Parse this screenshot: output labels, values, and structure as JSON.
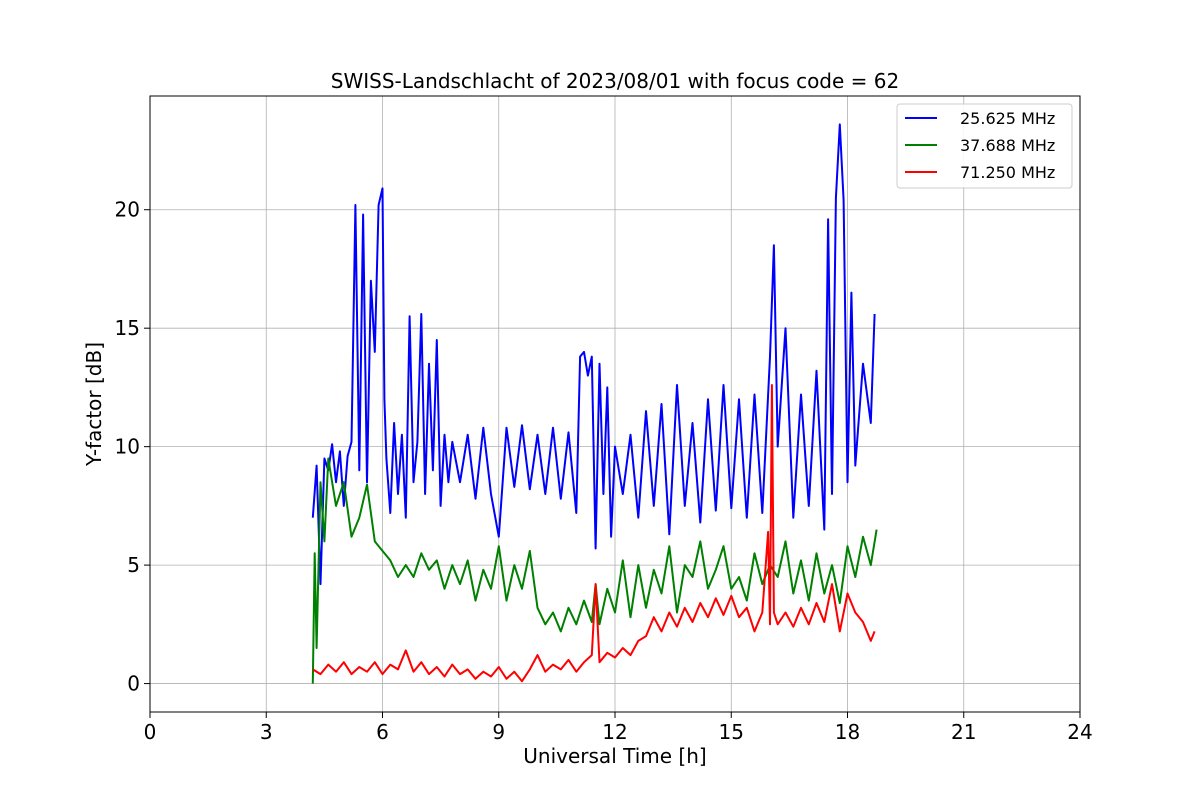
{
  "chart_data": {
    "type": "line",
    "title": "SWISS-Landschlacht of 2023/08/01 with focus code = 62",
    "xlabel": "Universal Time [h]",
    "ylabel": "Y-factor [dB]",
    "xlim": [
      0,
      24
    ],
    "ylim": [
      -1.2,
      24.8
    ],
    "xticks": [
      0,
      3,
      6,
      9,
      12,
      15,
      18,
      21,
      24
    ],
    "yticks": [
      0,
      5,
      10,
      15,
      20
    ],
    "grid": true,
    "legend_position": "top-right",
    "series": [
      {
        "name": "25.625 MHz",
        "color": "#0000ff",
        "x": [
          4.2,
          4.3,
          4.4,
          4.5,
          4.6,
          4.7,
          4.8,
          4.9,
          5.0,
          5.1,
          5.2,
          5.3,
          5.4,
          5.5,
          5.6,
          5.7,
          5.8,
          5.9,
          6.0,
          6.05,
          6.1,
          6.2,
          6.3,
          6.4,
          6.5,
          6.6,
          6.7,
          6.8,
          6.9,
          7.0,
          7.1,
          7.2,
          7.3,
          7.4,
          7.5,
          7.6,
          7.7,
          7.8,
          8.0,
          8.2,
          8.4,
          8.6,
          8.8,
          9.0,
          9.2,
          9.4,
          9.6,
          9.8,
          10.0,
          10.2,
          10.4,
          10.6,
          10.8,
          11.0,
          11.1,
          11.2,
          11.3,
          11.4,
          11.5,
          11.6,
          11.7,
          11.8,
          11.9,
          12.0,
          12.2,
          12.4,
          12.6,
          12.8,
          13.0,
          13.2,
          13.4,
          13.6,
          13.8,
          14.0,
          14.2,
          14.4,
          14.6,
          14.8,
          15.0,
          15.2,
          15.4,
          15.6,
          15.8,
          16.0,
          16.1,
          16.2,
          16.4,
          16.6,
          16.8,
          17.0,
          17.2,
          17.4,
          17.5,
          17.6,
          17.7,
          17.8,
          17.9,
          18.0,
          18.1,
          18.2,
          18.4,
          18.6,
          18.7
        ],
        "y": [
          7.0,
          9.2,
          4.2,
          9.5,
          9.0,
          10.1,
          8.5,
          9.8,
          7.5,
          9.6,
          10.2,
          20.2,
          9.0,
          19.8,
          8.5,
          17.0,
          14.0,
          20.2,
          20.9,
          12.0,
          9.5,
          7.2,
          11.0,
          8.0,
          10.5,
          7.0,
          15.5,
          8.5,
          10.2,
          15.6,
          8.0,
          13.5,
          9.0,
          14.5,
          7.5,
          10.5,
          8.5,
          10.2,
          8.5,
          10.5,
          7.8,
          10.8,
          8.0,
          6.2,
          10.8,
          8.3,
          10.9,
          8.2,
          10.5,
          8.0,
          10.8,
          7.8,
          10.6,
          7.2,
          13.8,
          14.0,
          13.0,
          13.8,
          5.7,
          13.5,
          8.0,
          12.5,
          6.2,
          10.0,
          8.0,
          10.5,
          7.0,
          11.5,
          7.5,
          11.8,
          6.3,
          12.6,
          7.5,
          11.0,
          6.8,
          12.0,
          7.3,
          12.6,
          7.4,
          12.0,
          7.0,
          12.2,
          7.2,
          13.8,
          18.5,
          10.0,
          15.0,
          7.0,
          12.2,
          7.5,
          13.2,
          6.5,
          19.6,
          8.0,
          20.5,
          23.6,
          20.4,
          8.5,
          16.5,
          9.2,
          13.5,
          11.0,
          15.6
        ]
      },
      {
        "name": "37.688 MHz",
        "color": "#008000",
        "x": [
          4.2,
          4.25,
          4.3,
          4.4,
          4.5,
          4.6,
          4.8,
          5.0,
          5.2,
          5.4,
          5.6,
          5.8,
          6.0,
          6.2,
          6.4,
          6.6,
          6.8,
          7.0,
          7.2,
          7.4,
          7.6,
          7.8,
          8.0,
          8.2,
          8.4,
          8.6,
          8.8,
          9.0,
          9.2,
          9.4,
          9.6,
          9.8,
          10.0,
          10.2,
          10.4,
          10.6,
          10.8,
          11.0,
          11.2,
          11.4,
          11.5,
          11.6,
          11.8,
          12.0,
          12.2,
          12.4,
          12.6,
          12.8,
          13.0,
          13.2,
          13.4,
          13.6,
          13.8,
          14.0,
          14.2,
          14.4,
          14.6,
          14.8,
          15.0,
          15.2,
          15.4,
          15.6,
          15.8,
          16.0,
          16.2,
          16.4,
          16.6,
          16.8,
          17.0,
          17.2,
          17.4,
          17.6,
          17.8,
          18.0,
          18.2,
          18.4,
          18.6,
          18.75
        ],
        "y": [
          0.0,
          5.5,
          1.5,
          8.5,
          6.0,
          9.5,
          7.5,
          8.5,
          6.2,
          7.0,
          8.4,
          6.0,
          5.6,
          5.2,
          4.5,
          5.0,
          4.5,
          5.5,
          4.8,
          5.2,
          4.0,
          5.0,
          4.2,
          5.2,
          3.5,
          4.8,
          4.0,
          5.8,
          3.5,
          5.0,
          4.0,
          5.6,
          3.2,
          2.5,
          3.0,
          2.2,
          3.2,
          2.5,
          3.5,
          2.6,
          4.2,
          2.5,
          4.0,
          3.0,
          5.2,
          2.8,
          5.0,
          3.2,
          4.8,
          3.8,
          5.8,
          3.0,
          5.0,
          4.5,
          6.0,
          4.0,
          4.8,
          5.8,
          4.0,
          4.5,
          3.5,
          5.5,
          4.2,
          5.0,
          4.5,
          6.0,
          3.8,
          5.2,
          3.5,
          5.5,
          3.8,
          5.0,
          3.4,
          5.8,
          4.5,
          6.2,
          5.0,
          6.5
        ]
      },
      {
        "name": "71.250 MHz",
        "color": "#ff0000",
        "x": [
          4.2,
          4.4,
          4.6,
          4.8,
          5.0,
          5.2,
          5.4,
          5.6,
          5.8,
          6.0,
          6.2,
          6.4,
          6.6,
          6.8,
          7.0,
          7.2,
          7.4,
          7.6,
          7.8,
          8.0,
          8.2,
          8.4,
          8.6,
          8.8,
          9.0,
          9.2,
          9.4,
          9.6,
          9.8,
          10.0,
          10.2,
          10.4,
          10.6,
          10.8,
          11.0,
          11.2,
          11.4,
          11.5,
          11.6,
          11.8,
          12.0,
          12.2,
          12.4,
          12.6,
          12.8,
          13.0,
          13.2,
          13.4,
          13.6,
          13.8,
          14.0,
          14.2,
          14.4,
          14.6,
          14.8,
          15.0,
          15.2,
          15.4,
          15.6,
          15.8,
          15.95,
          16.0,
          16.05,
          16.1,
          16.2,
          16.4,
          16.6,
          16.8,
          17.0,
          17.2,
          17.4,
          17.6,
          17.8,
          18.0,
          18.2,
          18.4,
          18.6,
          18.7
        ],
        "y": [
          0.6,
          0.4,
          0.8,
          0.5,
          0.9,
          0.4,
          0.7,
          0.5,
          0.9,
          0.4,
          0.8,
          0.6,
          1.4,
          0.5,
          0.9,
          0.4,
          0.7,
          0.3,
          0.8,
          0.4,
          0.6,
          0.2,
          0.5,
          0.3,
          0.7,
          0.2,
          0.5,
          0.1,
          0.6,
          1.2,
          0.5,
          0.8,
          0.6,
          1.0,
          0.5,
          0.9,
          1.2,
          4.2,
          0.9,
          1.3,
          1.1,
          1.5,
          1.2,
          1.8,
          2.0,
          2.8,
          2.2,
          3.0,
          2.4,
          3.2,
          2.6,
          3.4,
          2.8,
          3.6,
          2.9,
          3.7,
          2.8,
          3.2,
          2.2,
          3.0,
          6.4,
          2.5,
          12.6,
          3.0,
          2.5,
          3.0,
          2.4,
          3.2,
          2.5,
          3.4,
          2.6,
          4.2,
          2.2,
          3.8,
          3.0,
          2.6,
          1.8,
          2.2
        ]
      }
    ]
  }
}
